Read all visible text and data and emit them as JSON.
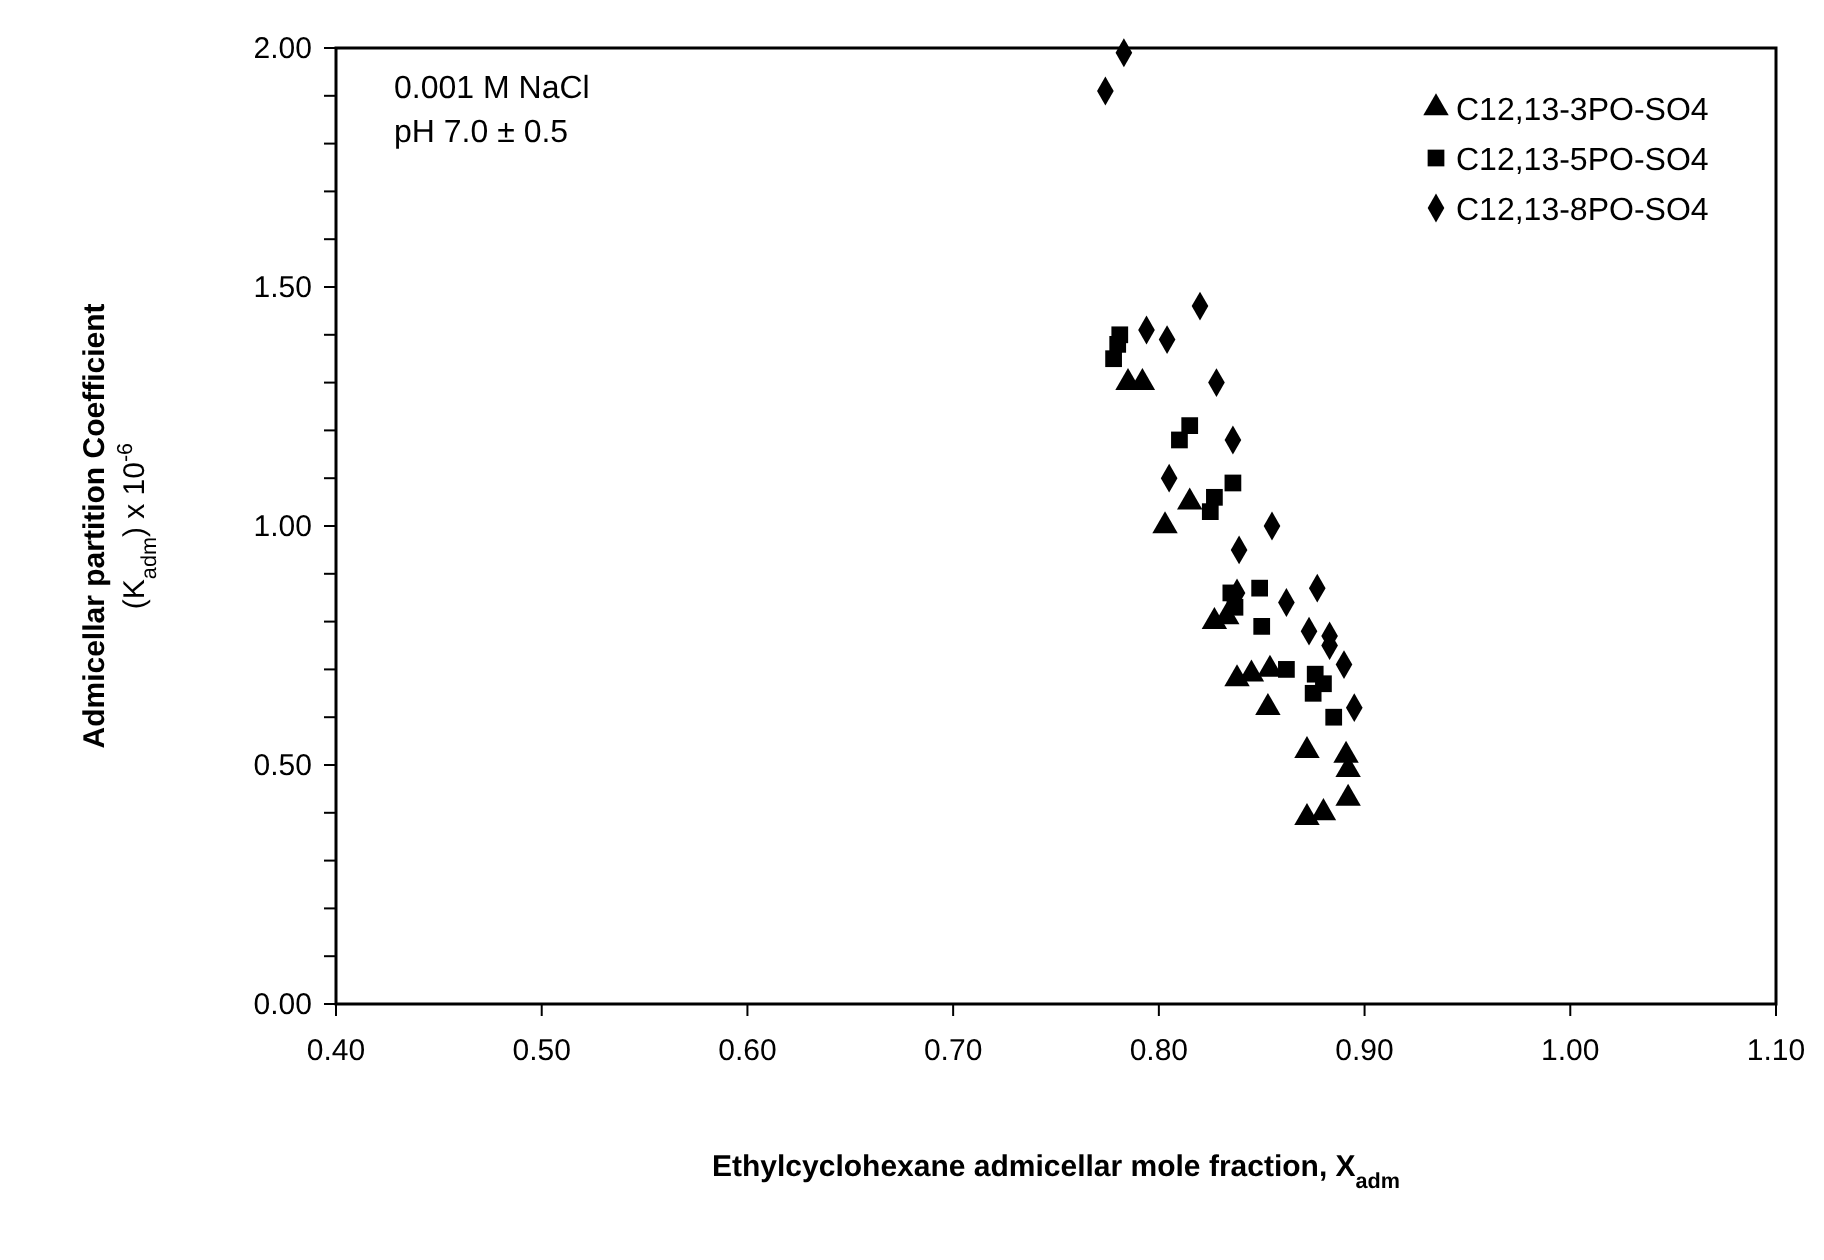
{
  "chart_data": {
    "type": "scatter",
    "xlabel": "Ethylcyclohexane admicellar mole fraction, X$_{adm}$",
    "ylabel": "Admicellar partition Coefficient\n(K$_{adm}$) x 10$^{-6}$",
    "annotations": [
      "0.001 M NaCl",
      "pH 7.0 ± 0.5"
    ],
    "xlim": [
      0.4,
      1.1
    ],
    "ylim": [
      0,
      2
    ],
    "xticks": [
      {
        "value": 0.4,
        "label": "0.40"
      },
      {
        "value": 0.5,
        "label": "0.50"
      },
      {
        "value": 0.6,
        "label": "0.60"
      },
      {
        "value": 0.7,
        "label": "0.70"
      },
      {
        "value": 0.8,
        "label": "0.80"
      },
      {
        "value": 0.9,
        "label": "0.90"
      },
      {
        "value": 1.0,
        "label": "1.00"
      },
      {
        "value": 1.1,
        "label": "1.10"
      }
    ],
    "yticks": [
      {
        "value": 0,
        "label": "0.00"
      },
      {
        "value": 0.1,
        "label": null
      },
      {
        "value": 0.2,
        "label": null
      },
      {
        "value": 0.3,
        "label": null
      },
      {
        "value": 0.4,
        "label": null
      },
      {
        "value": 0.5,
        "label": "0.50"
      },
      {
        "value": 0.6,
        "label": null
      },
      {
        "value": 0.7,
        "label": null
      },
      {
        "value": 0.8,
        "label": null
      },
      {
        "value": 0.9,
        "label": null
      },
      {
        "value": 1.0,
        "label": "1.00"
      },
      {
        "value": 1.1,
        "label": null
      },
      {
        "value": 1.2,
        "label": null
      },
      {
        "value": 1.3,
        "label": null
      },
      {
        "value": 1.4,
        "label": null
      },
      {
        "value": 1.5,
        "label": "1.50"
      },
      {
        "value": 1.6,
        "label": null
      },
      {
        "value": 1.7,
        "label": null
      },
      {
        "value": 1.8,
        "label": null
      },
      {
        "value": 1.9,
        "label": null
      },
      {
        "value": 2.0,
        "label": "2.00"
      }
    ],
    "grid": false,
    "legend": "top right",
    "series": [
      {
        "name": "C12,13-3PO-SO4",
        "color": "#000000",
        "marker": "triangle",
        "x": [
          0.785,
          0.792,
          0.815,
          0.803,
          0.827,
          0.845,
          0.854,
          0.853,
          0.872,
          0.891,
          0.892,
          0.892,
          0.872,
          0.88,
          0.838,
          0.833
        ],
        "values": [
          1.3,
          1.3,
          1.05,
          1.0,
          0.8,
          0.69,
          0.7,
          0.62,
          0.53,
          0.52,
          0.49,
          0.43,
          0.39,
          0.4,
          0.68,
          0.81
        ]
      },
      {
        "name": "C12,13-5PO-SO4",
        "color": "#000000",
        "marker": "square",
        "x": [
          0.781,
          0.78,
          0.778,
          0.815,
          0.81,
          0.836,
          0.827,
          0.825,
          0.849,
          0.837,
          0.85,
          0.862,
          0.876,
          0.875,
          0.885,
          0.88,
          0.835
        ],
        "values": [
          1.4,
          1.38,
          1.35,
          1.21,
          1.18,
          1.09,
          1.06,
          1.03,
          0.87,
          0.83,
          0.79,
          0.7,
          0.69,
          0.65,
          0.6,
          0.67,
          0.86
        ]
      },
      {
        "name": "C12,13-8PO-SO4",
        "color": "#000000",
        "marker": "diamond",
        "x": [
          0.774,
          0.783,
          0.82,
          0.794,
          0.804,
          0.828,
          0.836,
          0.805,
          0.855,
          0.839,
          0.877,
          0.862,
          0.873,
          0.883,
          0.883,
          0.89,
          0.895,
          0.838
        ],
        "values": [
          1.91,
          1.99,
          1.46,
          1.41,
          1.39,
          1.3,
          1.18,
          1.1,
          1.0,
          0.95,
          0.87,
          0.84,
          0.78,
          0.77,
          0.75,
          0.71,
          0.62,
          0.86
        ]
      }
    ]
  }
}
